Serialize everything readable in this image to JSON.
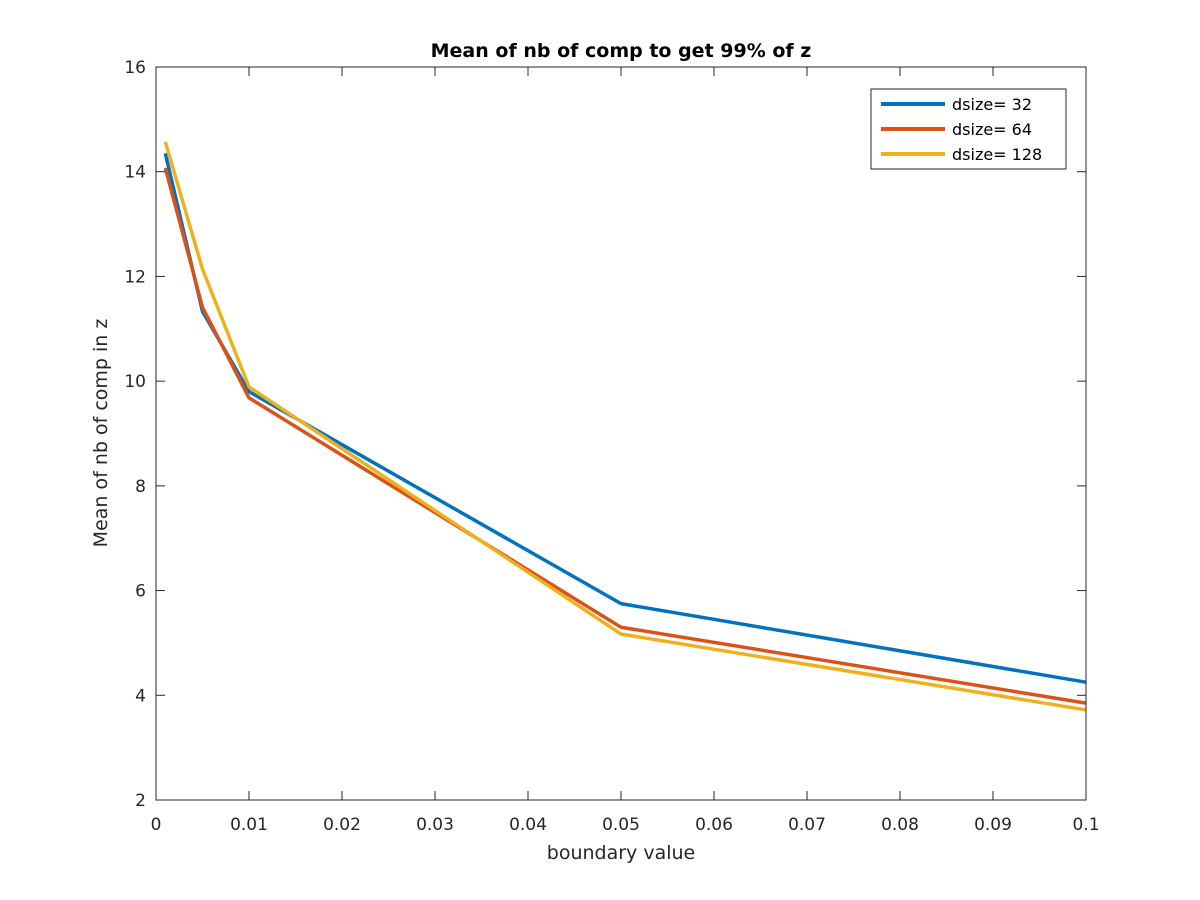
{
  "chart_data": {
    "type": "line",
    "title": "Mean of nb of comp to get 99% of z",
    "xlabel": "boundary value",
    "ylabel": "Mean of nb of comp in z",
    "xlim": [
      0,
      0.1
    ],
    "ylim": [
      2,
      16
    ],
    "xticks": [
      0,
      0.01,
      0.02,
      0.03,
      0.04,
      0.05,
      0.06,
      0.07,
      0.08,
      0.09,
      0.1
    ],
    "xtick_labels": [
      "0",
      "0.01",
      "0.02",
      "0.03",
      "0.04",
      "0.05",
      "0.06",
      "0.07",
      "0.08",
      "0.09",
      "0.1"
    ],
    "yticks": [
      2,
      4,
      6,
      8,
      10,
      12,
      14,
      16
    ],
    "ytick_labels": [
      "2",
      "4",
      "6",
      "8",
      "10",
      "12",
      "14",
      "16"
    ],
    "grid": false,
    "legend_position": "top-right",
    "x": [
      0.001,
      0.005,
      0.01,
      0.05,
      0.1
    ],
    "series": [
      {
        "name": "dsize= 32",
        "color": "#0072BD",
        "values": [
          14.35,
          11.33,
          9.8,
          5.75,
          4.25
        ]
      },
      {
        "name": "dsize= 64",
        "color": "#D95319",
        "values": [
          14.07,
          11.41,
          9.68,
          5.3,
          3.85
        ]
      },
      {
        "name": "dsize= 128",
        "color": "#EDB120",
        "values": [
          14.57,
          12.14,
          9.89,
          5.17,
          3.72
        ]
      }
    ]
  }
}
